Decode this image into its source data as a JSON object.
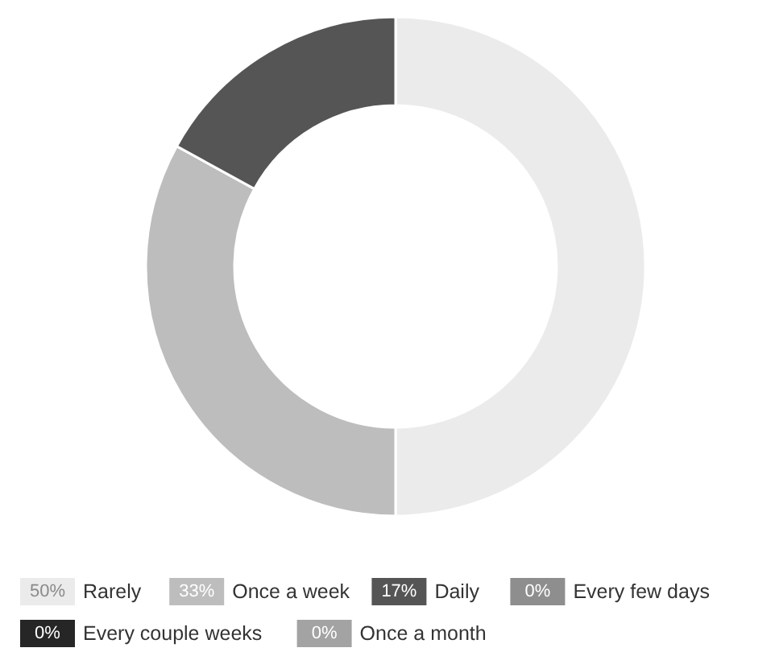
{
  "chart_data": {
    "type": "donut",
    "categories": [
      "Rarely",
      "Once a week",
      "Daily",
      "Every few days",
      "Every couple weeks",
      "Once a month"
    ],
    "values": [
      50,
      33,
      17,
      0,
      0,
      0
    ],
    "colors": [
      "#ebebeb",
      "#bdbdbd",
      "#555555",
      "#8e8e8e",
      "#262626",
      "#a3a3a3"
    ],
    "value_labels": [
      "50%",
      "33%",
      "17%",
      "0%",
      "0%",
      "0%"
    ],
    "legend": "bottom"
  }
}
